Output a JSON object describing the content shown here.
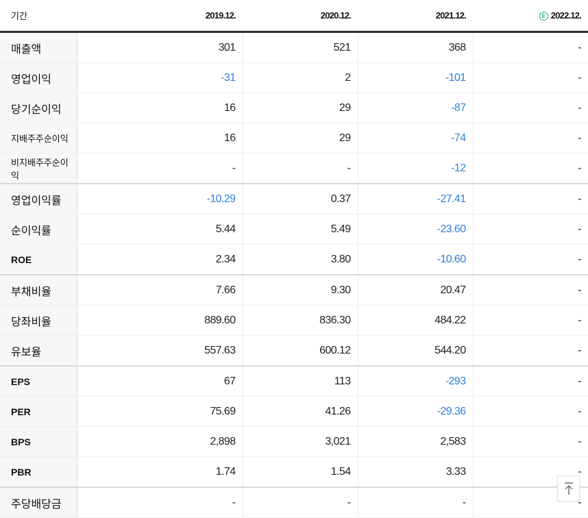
{
  "table": {
    "header": {
      "period_label": "기간",
      "columns": [
        {
          "label": "2019.12.",
          "estimate": false
        },
        {
          "label": "2020.12.",
          "estimate": false
        },
        {
          "label": "2021.12.",
          "estimate": false
        },
        {
          "label": "2022.12.",
          "estimate": true,
          "estimate_icon": "E"
        }
      ]
    },
    "rows": [
      {
        "label": "매출액",
        "values": [
          "301",
          "521",
          "368",
          "-"
        ]
      },
      {
        "label": "영업이익",
        "values": [
          "-31",
          "2",
          "-101",
          "-"
        ]
      },
      {
        "label": "당기순이익",
        "values": [
          "16",
          "29",
          "-87",
          "-"
        ]
      },
      {
        "label": "지배주주순이익",
        "values": [
          "16",
          "29",
          "-74",
          "-"
        ]
      },
      {
        "label": "비지배주주순이익",
        "values": [
          "-",
          "-",
          "-12",
          "-"
        ]
      },
      {
        "label": "영업이익률",
        "values": [
          "-10.29",
          "0.37",
          "-27.41",
          "-"
        ]
      },
      {
        "label": "순이익률",
        "values": [
          "5.44",
          "5.49",
          "-23.60",
          "-"
        ]
      },
      {
        "label": "ROE",
        "values": [
          "2.34",
          "3.80",
          "-10.60",
          "-"
        ]
      },
      {
        "label": "부채비율",
        "values": [
          "7.66",
          "9.30",
          "20.47",
          "-"
        ]
      },
      {
        "label": "당좌비율",
        "values": [
          "889.60",
          "836.30",
          "484.22",
          "-"
        ]
      },
      {
        "label": "유보율",
        "values": [
          "557.63",
          "600.12",
          "544.20",
          "-"
        ]
      },
      {
        "label": "EPS",
        "values": [
          "67",
          "113",
          "-293",
          "-"
        ]
      },
      {
        "label": "PER",
        "values": [
          "75.69",
          "41.26",
          "-29.36",
          "-"
        ]
      },
      {
        "label": "BPS",
        "values": [
          "2,898",
          "3,021",
          "2,583",
          "-"
        ]
      },
      {
        "label": "PBR",
        "values": [
          "1.74",
          "1.54",
          "3.33",
          "-"
        ]
      },
      {
        "label": "주당배당금",
        "values": [
          "-",
          "-",
          "-",
          "-"
        ]
      }
    ]
  },
  "scroll_top_button": {
    "icon": "arrow-up-to-top-icon"
  },
  "colors": {
    "negative": "#2f7fd9",
    "estimate": "#1fb07a",
    "header_border": "#2b2b2b"
  }
}
